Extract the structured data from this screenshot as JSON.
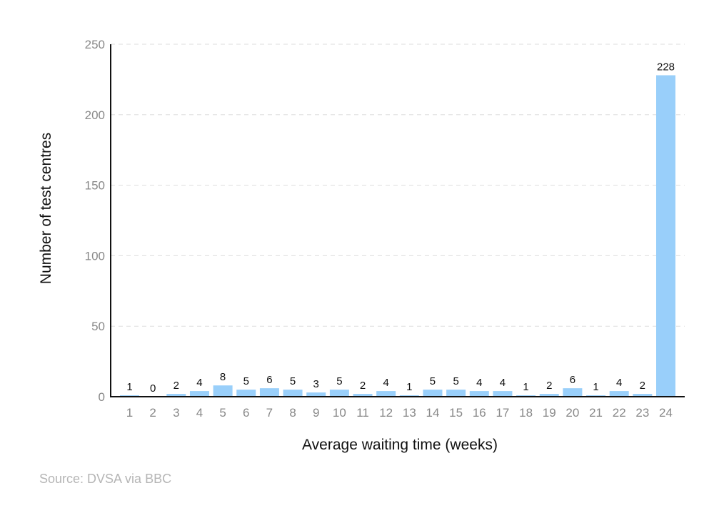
{
  "chart_data": {
    "type": "bar",
    "categories": [
      "1",
      "2",
      "3",
      "4",
      "5",
      "6",
      "7",
      "8",
      "9",
      "10",
      "11",
      "12",
      "13",
      "14",
      "15",
      "16",
      "17",
      "18",
      "19",
      "20",
      "21",
      "22",
      "23",
      "24"
    ],
    "values": [
      1,
      0,
      2,
      4,
      8,
      5,
      6,
      5,
      3,
      5,
      2,
      4,
      1,
      5,
      5,
      4,
      4,
      1,
      2,
      6,
      1,
      4,
      2,
      228
    ],
    "xlabel": "Average waiting time (weeks)",
    "ylabel": "Number of test centres",
    "ylim": [
      0,
      250
    ],
    "yticks": [
      0,
      50,
      100,
      150,
      200,
      250
    ],
    "grid": true,
    "legend": "none",
    "bar_color": "#99cffa",
    "axis_color": "#111111",
    "grid_color": "#dddddd"
  },
  "source": "Source: DVSA via BBC"
}
